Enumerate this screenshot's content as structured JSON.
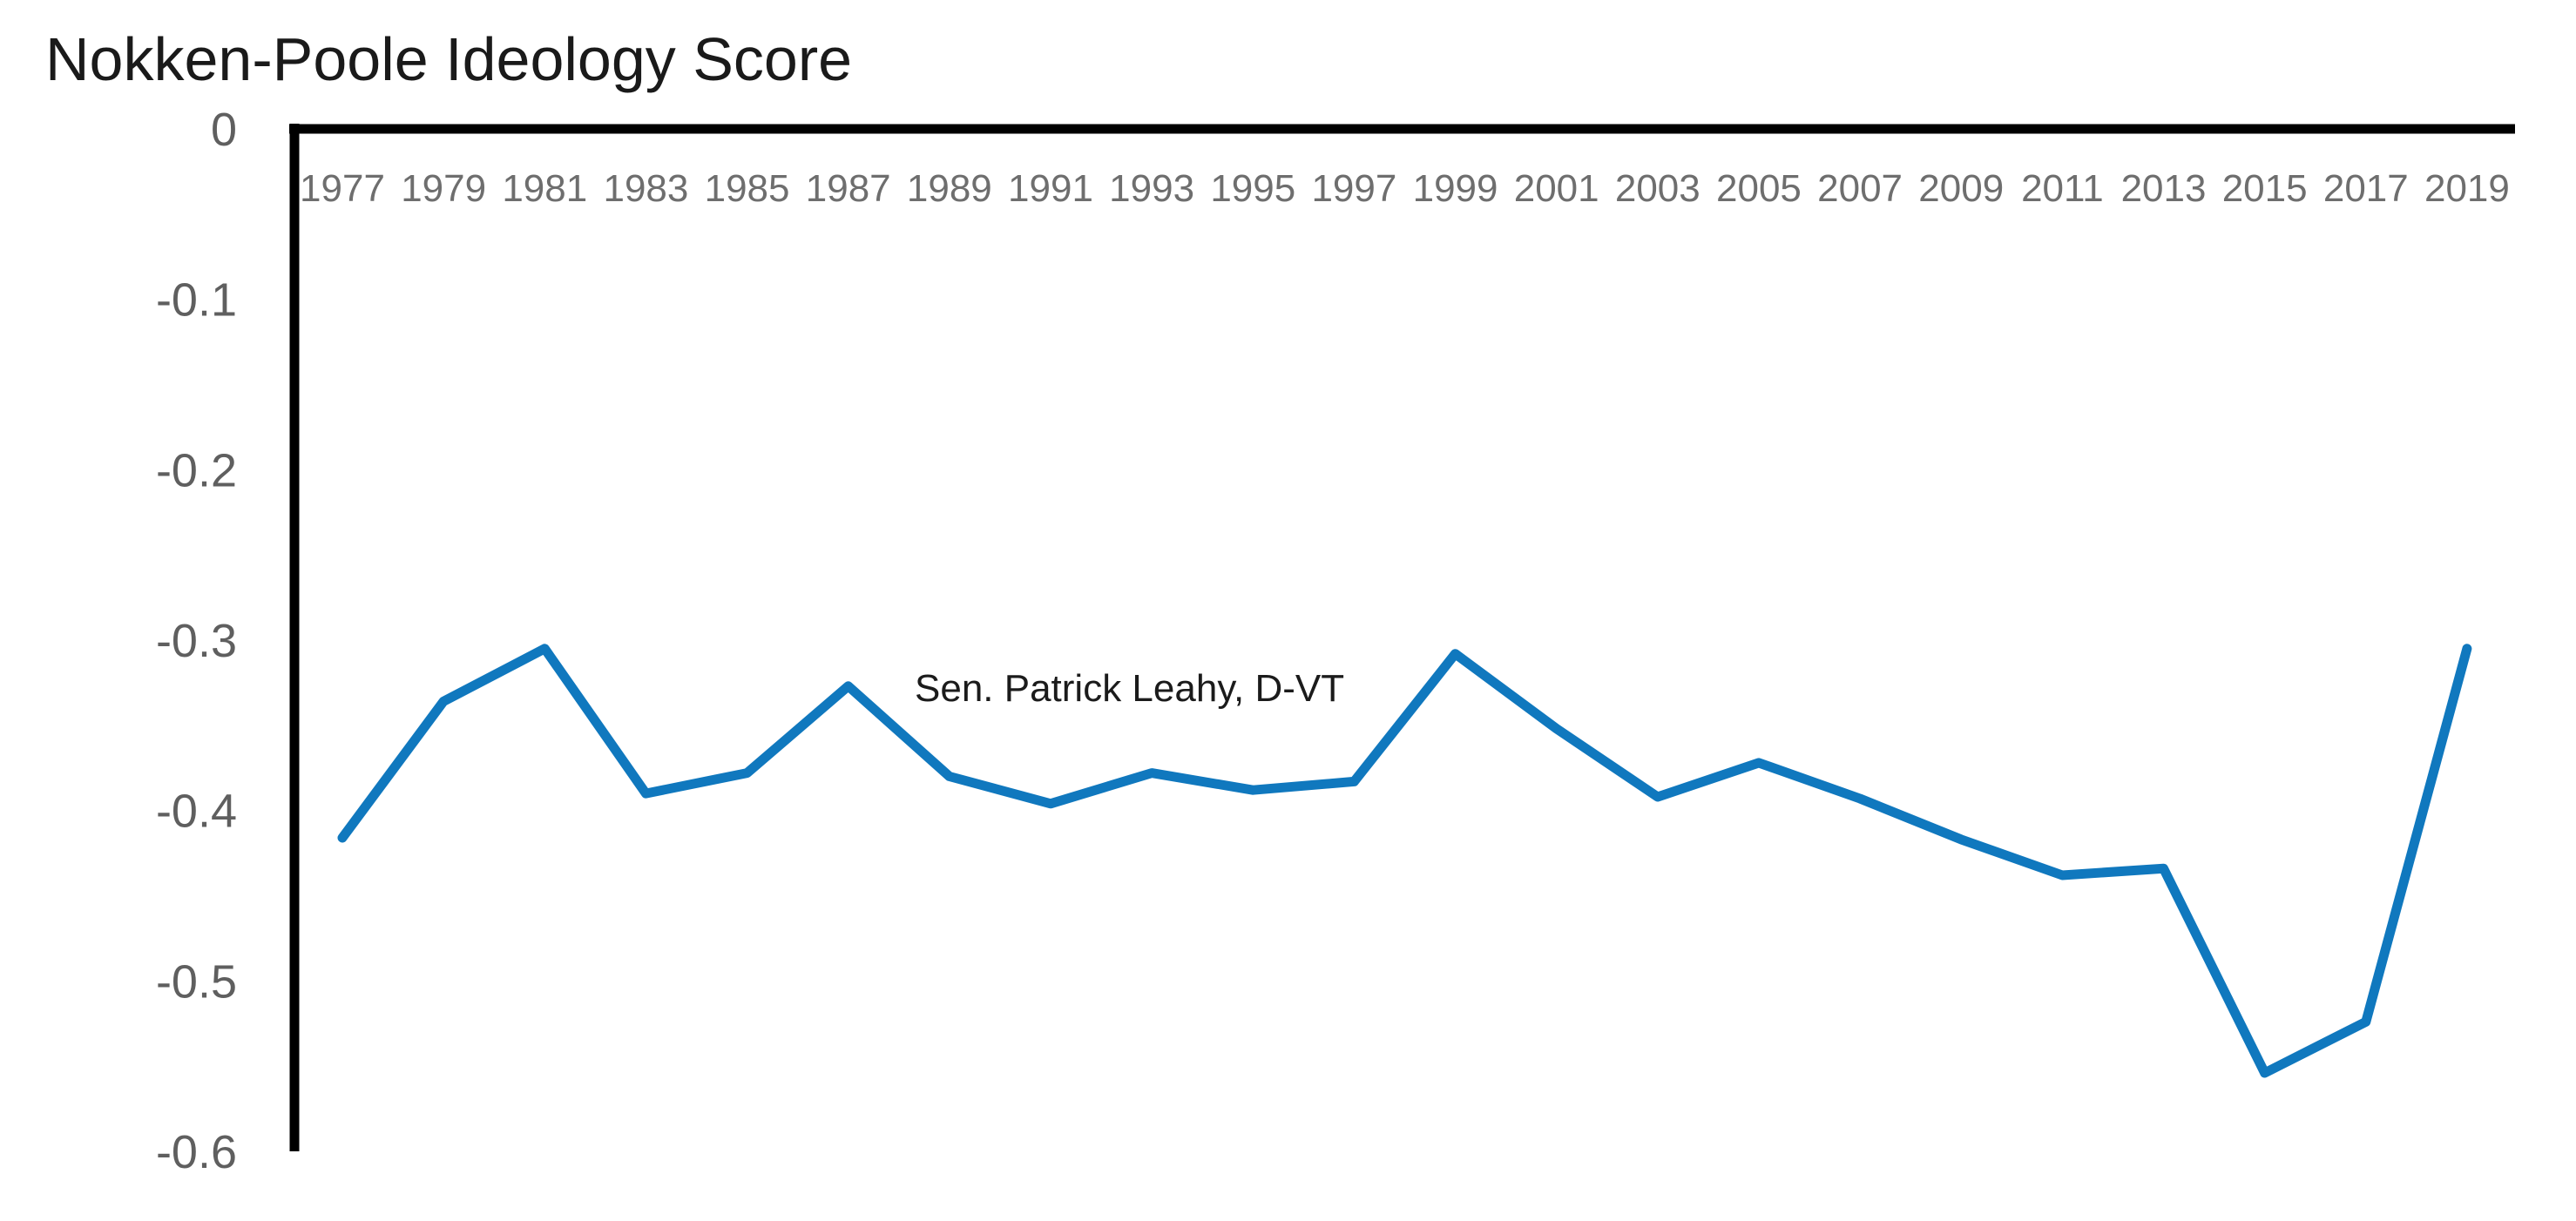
{
  "title": "Nokken-Poole Ideology Score",
  "chart_data": {
    "type": "line",
    "title": "Nokken-Poole Ideology Score",
    "xlabel": "",
    "ylabel": "",
    "x": [
      1977,
      1979,
      1981,
      1983,
      1985,
      1987,
      1989,
      1991,
      1993,
      1995,
      1997,
      1999,
      2001,
      2003,
      2005,
      2007,
      2009,
      2011,
      2013,
      2015,
      2017,
      2019
    ],
    "x_tick_labels": [
      "1977",
      "1979",
      "1981",
      "1983",
      "1985",
      "1987",
      "1989",
      "1991",
      "1993",
      "1995",
      "1997",
      "1999",
      "2001",
      "2003",
      "2005",
      "2007",
      "2009",
      "2011",
      "2013",
      "2015",
      "2017",
      "2019"
    ],
    "series": [
      {
        "name": "Sen. Patrick Leahy, D-VT",
        "values": [
          -0.416,
          -0.336,
          -0.305,
          -0.39,
          -0.378,
          -0.327,
          -0.38,
          -0.396,
          -0.378,
          -0.388,
          -0.383,
          -0.308,
          -0.352,
          -0.392,
          -0.372,
          -0.393,
          -0.417,
          -0.438,
          -0.434,
          -0.554,
          -0.524,
          -0.305
        ]
      }
    ],
    "ylim": [
      -0.6,
      0
    ],
    "y_ticks": [
      0,
      -0.1,
      -0.2,
      -0.3,
      -0.4,
      -0.5,
      -0.6
    ],
    "y_tick_labels": [
      "0",
      "-0.1",
      "-0.2",
      "-0.3",
      "-0.4",
      "-0.5",
      "-0.6"
    ],
    "grid": false,
    "legend_position": "none",
    "annotation": {
      "text": "Sen. Patrick Leahy, D-VT"
    },
    "colors": {
      "line": "#1078be",
      "axis": "#000000",
      "y_tick_label": "#5f5f5f",
      "x_tick_label": "#6e6e6e",
      "title": "#1a1a1a",
      "annotation": "#1b1b1b",
      "background": "#ffffff"
    }
  }
}
